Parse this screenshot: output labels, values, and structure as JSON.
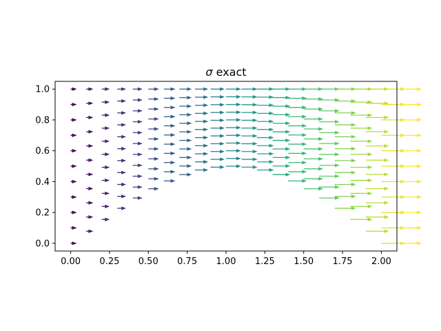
{
  "chart_data": {
    "type": "quiver",
    "title": "σ exact",
    "title_parts": {
      "symbol": "σ",
      "rest": " exact"
    },
    "xlabel": "",
    "ylabel": "",
    "xlim": [
      -0.1,
      2.1
    ],
    "ylim": [
      -0.05,
      1.05
    ],
    "xticks": [
      0.0,
      0.25,
      0.5,
      0.75,
      1.0,
      1.25,
      1.5,
      1.75,
      2.0
    ],
    "xtick_labels": [
      "0.00",
      "0.25",
      "0.50",
      "0.75",
      "1.00",
      "1.25",
      "1.50",
      "1.75",
      "2.00"
    ],
    "yticks": [
      0.0,
      0.2,
      0.4,
      0.6,
      0.8,
      1.0
    ],
    "ytick_labels": [
      "0.0",
      "0.2",
      "0.4",
      "0.6",
      "0.8",
      "1.0"
    ],
    "grid": false,
    "colormap": "viridis",
    "grid_x": [
      0.0,
      0.1,
      0.2,
      0.3,
      0.4,
      0.5,
      0.6,
      0.7,
      0.8,
      0.9,
      1.0,
      1.1,
      1.2,
      1.3,
      1.4,
      1.5,
      1.6,
      1.7,
      1.8,
      1.9,
      2.0,
      2.1
    ],
    "grid_y": [
      0.0,
      0.1,
      0.2,
      0.3,
      0.4,
      0.5,
      0.6,
      0.7,
      0.8,
      0.9,
      1.0
    ],
    "arrow_direction": "+x",
    "arrow_length_range": [
      0.04,
      0.16
    ],
    "field_shift": "arrow tails displaced upward in the middle of the domain, zero at x=0 and x=2.1 and on the top row"
  }
}
